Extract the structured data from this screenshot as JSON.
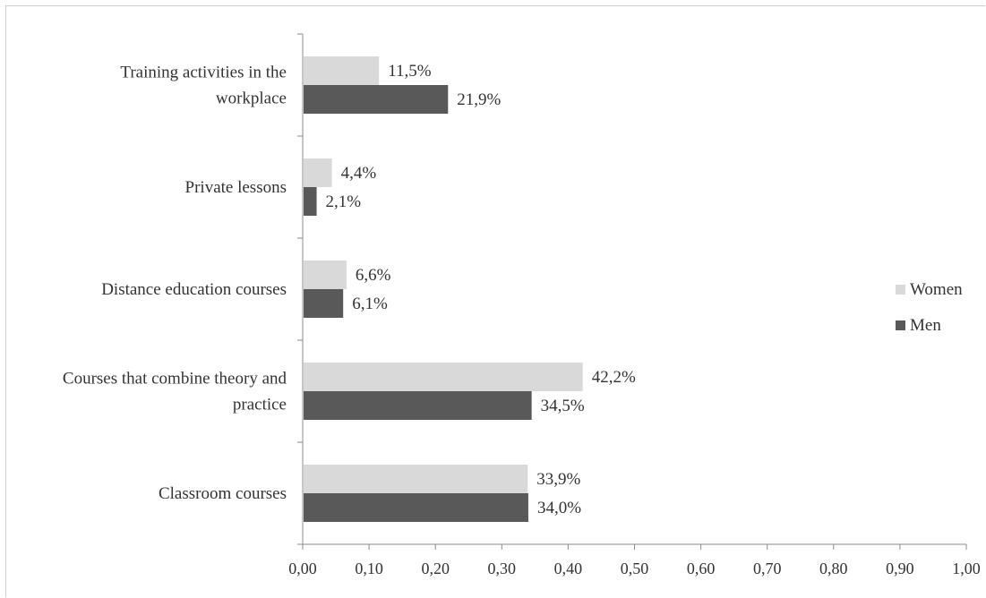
{
  "chart_data": {
    "type": "bar",
    "orientation": "horizontal",
    "categories": [
      [
        "Training activities in the",
        "workplace"
      ],
      [
        "Private lessons"
      ],
      [
        "Distance education courses"
      ],
      [
        "Courses that combine theory and",
        "practice"
      ],
      [
        "Classroom courses"
      ]
    ],
    "series": [
      {
        "name": "Women",
        "color": "#d9d9d9",
        "values": [
          0.115,
          0.044,
          0.066,
          0.422,
          0.339
        ],
        "labels": [
          "11,5%",
          "4,4%",
          "6,6%",
          "42,2%",
          "33,9%"
        ]
      },
      {
        "name": "Men",
        "color": "#595959",
        "values": [
          0.219,
          0.021,
          0.061,
          0.345,
          0.34
        ],
        "labels": [
          "21,9%",
          "2,1%",
          "6,1%",
          "34,5%",
          "34,0%"
        ]
      }
    ],
    "xlim": [
      0,
      1
    ],
    "xticks": [
      "0,00",
      "0,10",
      "0,20",
      "0,30",
      "0,40",
      "0,50",
      "0,60",
      "0,70",
      "0,80",
      "0,90",
      "1,00"
    ],
    "grid": false,
    "legend": "right"
  }
}
